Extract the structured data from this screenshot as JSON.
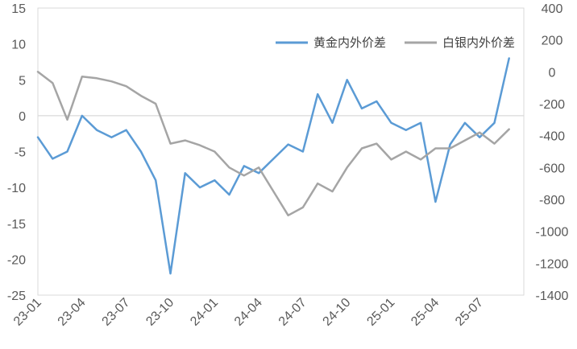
{
  "chart_data": {
    "type": "line",
    "title": "",
    "xlabel": "",
    "ylabel": "",
    "y2label": "",
    "grid": false,
    "legend_position": "top-right",
    "left_axis": {
      "min": -25,
      "max": 15,
      "ticks": [
        "15",
        "10",
        "5",
        "0",
        "-5",
        "-10",
        "-15",
        "-20",
        "-25"
      ]
    },
    "right_axis": {
      "min": -1400,
      "max": 400,
      "ticks": [
        "400",
        "200",
        "0",
        "-200",
        "-400",
        "-600",
        "-800",
        "-1000",
        "-1200",
        "-1400"
      ]
    },
    "x_range": [
      "2023-01",
      "2025-10"
    ],
    "x_ticks": [
      "23-01",
      "23-04",
      "23-07",
      "23-10",
      "24-01",
      "24-04",
      "24-07",
      "24-10",
      "25-01",
      "25-04",
      "25-07"
    ],
    "zero_line": 0,
    "series": [
      {
        "name": "黄金内外价差",
        "axis": "left",
        "color": "#5B9BD5",
        "x": [
          "2023-01",
          "2023-02",
          "2023-03",
          "2023-04",
          "2023-05",
          "2023-06",
          "2023-07",
          "2023-08",
          "2023-09",
          "2023-10",
          "2023-11",
          "2023-12",
          "2024-01",
          "2024-02",
          "2024-03",
          "2024-04",
          "2024-05",
          "2024-06",
          "2024-07",
          "2024-08",
          "2024-09",
          "2024-10",
          "2024-11",
          "2024-12",
          "2025-01",
          "2025-02",
          "2025-03",
          "2025-04",
          "2025-05",
          "2025-06",
          "2025-07",
          "2025-08",
          "2025-09"
        ],
        "values": [
          -3,
          -6,
          -5,
          0,
          -2,
          -3,
          -2,
          -5,
          -9,
          -22,
          -8,
          -10,
          -9,
          -11,
          -7,
          -8,
          -6,
          -4,
          -5,
          3,
          -1,
          5,
          1,
          2,
          -1,
          -2,
          -1,
          -12,
          -4,
          -1,
          -3,
          -1,
          8
        ]
      },
      {
        "name": "白银内外价差",
        "axis": "right",
        "color": "#A5A5A5",
        "x": [
          "2023-01",
          "2023-02",
          "2023-03",
          "2023-04",
          "2023-05",
          "2023-06",
          "2023-07",
          "2023-08",
          "2023-09",
          "2023-10",
          "2023-11",
          "2023-12",
          "2024-01",
          "2024-02",
          "2024-03",
          "2024-04",
          "2024-05",
          "2024-06",
          "2024-07",
          "2024-08",
          "2024-09",
          "2024-10",
          "2024-11",
          "2024-12",
          "2025-01",
          "2025-02",
          "2025-03",
          "2025-04",
          "2025-05",
          "2025-06",
          "2025-07",
          "2025-08",
          "2025-09"
        ],
        "values": [
          0,
          -70,
          -300,
          -30,
          -40,
          -60,
          -90,
          -150,
          -200,
          -450,
          -430,
          -460,
          -500,
          -600,
          -650,
          -600,
          -750,
          -900,
          -850,
          -700,
          -750,
          -600,
          -480,
          -450,
          -550,
          -500,
          -550,
          -480,
          -480,
          -430,
          -380,
          -450,
          -360
        ]
      }
    ]
  }
}
